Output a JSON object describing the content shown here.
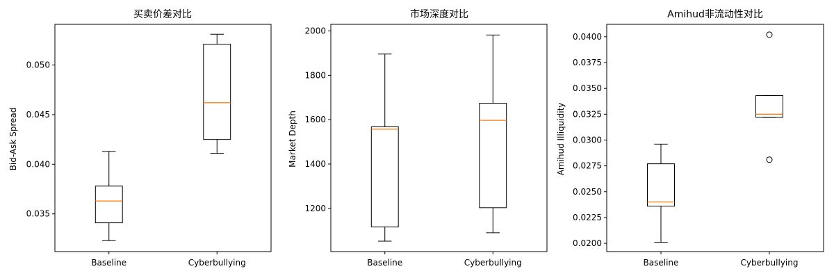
{
  "chart_data": [
    {
      "type": "box",
      "title": "买卖价差对比",
      "xlabel": "",
      "ylabel": "Bid-Ask Spread",
      "categories": [
        "Baseline",
        "Cyberbullying"
      ],
      "ylim": [
        0.0312,
        0.0541
      ],
      "yticks": [
        0.035,
        0.04,
        0.045,
        0.05
      ],
      "ytick_labels": [
        "0.035",
        "0.040",
        "0.045",
        "0.050"
      ],
      "boxes": [
        {
          "category": "Baseline",
          "whislo": 0.0323,
          "q1": 0.0341,
          "median": 0.0363,
          "q3": 0.0378,
          "whishi": 0.0413,
          "fliers": []
        },
        {
          "category": "Cyberbullying",
          "whislo": 0.0411,
          "q1": 0.0425,
          "median": 0.0462,
          "q3": 0.0521,
          "whishi": 0.0531,
          "fliers": []
        }
      ],
      "colors": {
        "box": "#000000",
        "median": "#ff7f0e"
      },
      "grid": false
    },
    {
      "type": "box",
      "title": "市场深度对比",
      "xlabel": "",
      "ylabel": "Market Depth",
      "categories": [
        "Baseline",
        "Cyberbullying"
      ],
      "ylim": [
        1005,
        2030
      ],
      "yticks": [
        1200,
        1400,
        1600,
        1800,
        2000
      ],
      "ytick_labels": [
        "1200",
        "1400",
        "1600",
        "1800",
        "2000"
      ],
      "boxes": [
        {
          "category": "Baseline",
          "whislo": 1052,
          "q1": 1116,
          "median": 1557,
          "q3": 1568,
          "whishi": 1896,
          "fliers": []
        },
        {
          "category": "Cyberbullying",
          "whislo": 1090,
          "q1": 1203,
          "median": 1597,
          "q3": 1674,
          "whishi": 1982,
          "fliers": []
        }
      ],
      "colors": {
        "box": "#000000",
        "median": "#ff7f0e"
      },
      "grid": false
    },
    {
      "type": "box",
      "title": "Amihud非流动性对比",
      "xlabel": "",
      "ylabel": "Amihud Illiquidity",
      "categories": [
        "Baseline",
        "Cyberbullying"
      ],
      "ylim": [
        0.0192,
        0.0412
      ],
      "yticks": [
        0.02,
        0.0225,
        0.025,
        0.0275,
        0.03,
        0.0325,
        0.035,
        0.0375,
        0.04
      ],
      "ytick_labels": [
        "0.0200",
        "0.0225",
        "0.0250",
        "0.0275",
        "0.0300",
        "0.0325",
        "0.0350",
        "0.0375",
        "0.0400"
      ],
      "boxes": [
        {
          "category": "Baseline",
          "whislo": 0.0201,
          "q1": 0.0236,
          "median": 0.024,
          "q3": 0.0277,
          "whishi": 0.0296,
          "fliers": []
        },
        {
          "category": "Cyberbullying",
          "whislo": 0.0322,
          "q1": 0.0322,
          "median": 0.0325,
          "q3": 0.0343,
          "whishi": 0.0343,
          "fliers": [
            0.0402,
            0.0281
          ]
        }
      ],
      "colors": {
        "box": "#000000",
        "median": "#ff7f0e"
      },
      "grid": false
    }
  ]
}
